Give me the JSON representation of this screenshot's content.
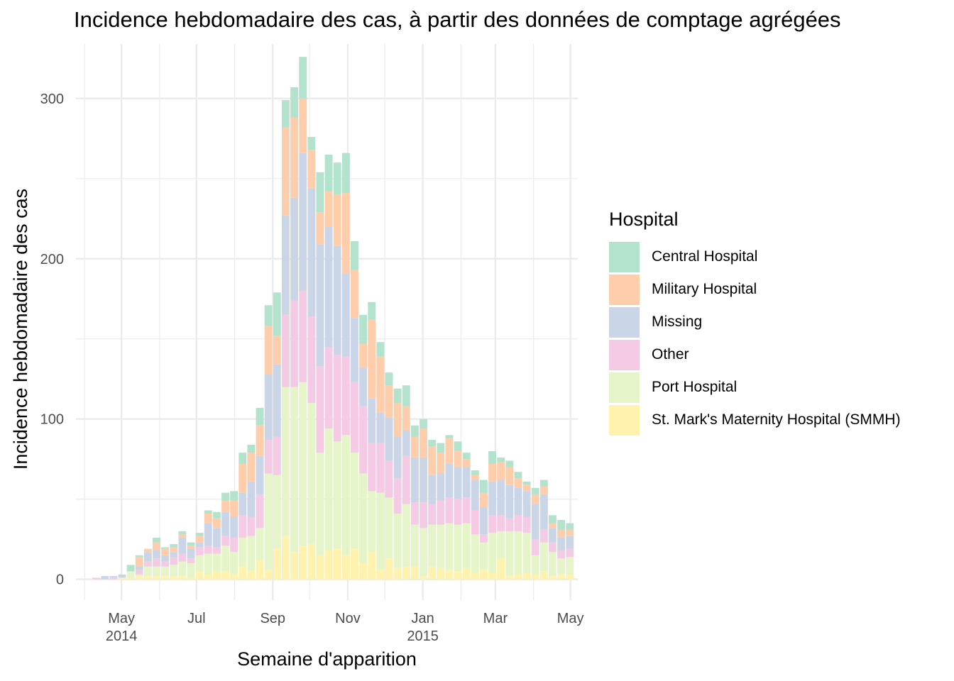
{
  "chart_data": {
    "type": "bar",
    "stacked": true,
    "title": "Incidence hebdomadaire des cas, à partir des données de comptage agrégées",
    "xlabel": "Semaine d'apparition",
    "ylabel": "Incidence hebdomadaire des cas",
    "ylim": [
      -13,
      334
    ],
    "y_ticks": [
      0,
      100,
      200,
      300
    ],
    "x_ticks": [
      {
        "date": "2014-05-01",
        "lines": [
          "May",
          "2014"
        ]
      },
      {
        "date": "2014-07-01",
        "lines": [
          "Jul"
        ]
      },
      {
        "date": "2014-09-01",
        "lines": [
          "Sep"
        ]
      },
      {
        "date": "2014-11-01",
        "lines": [
          "Nov"
        ]
      },
      {
        "date": "2015-01-01",
        "lines": [
          "Jan",
          "2015"
        ]
      },
      {
        "date": "2015-03-01",
        "lines": [
          "Mar"
        ]
      },
      {
        "date": "2015-05-01",
        "lines": [
          "May"
        ]
      }
    ],
    "x_minor_ticks": [
      "2014-04-01",
      "2014-06-01",
      "2014-08-01",
      "2014-10-01",
      "2014-12-01",
      "2015-02-01",
      "2015-04-01"
    ],
    "xlim": [
      "2014-03-25",
      "2015-05-07"
    ],
    "grid": true,
    "legend_position": "right",
    "legend_title": "Hospital",
    "weeks": [
      "2014-04-07",
      "2014-04-14",
      "2014-04-21",
      "2014-04-28",
      "2014-05-05",
      "2014-05-12",
      "2014-05-19",
      "2014-05-26",
      "2014-06-02",
      "2014-06-09",
      "2014-06-16",
      "2014-06-23",
      "2014-06-30",
      "2014-07-07",
      "2014-07-14",
      "2014-07-21",
      "2014-07-28",
      "2014-08-04",
      "2014-08-11",
      "2014-08-18",
      "2014-08-25",
      "2014-09-01",
      "2014-09-08",
      "2014-09-15",
      "2014-09-22",
      "2014-09-29",
      "2014-10-06",
      "2014-10-13",
      "2014-10-20",
      "2014-10-27",
      "2014-11-03",
      "2014-11-10",
      "2014-11-17",
      "2014-11-24",
      "2014-12-01",
      "2014-12-08",
      "2014-12-15",
      "2014-12-22",
      "2014-12-29",
      "2015-01-05",
      "2015-01-12",
      "2015-01-19",
      "2015-01-26",
      "2015-02-02",
      "2015-02-09",
      "2015-02-16",
      "2015-02-23",
      "2015-03-02",
      "2015-03-09",
      "2015-03-16",
      "2015-03-23",
      "2015-03-30",
      "2015-04-06",
      "2015-04-13",
      "2015-04-20",
      "2015-04-27"
    ],
    "series": [
      {
        "name": "St. Mark's Maternity Hospital (SMMH)",
        "color": "#fff2ae",
        "values": [
          0,
          0,
          0,
          1,
          1,
          2,
          2,
          2,
          2,
          2,
          2,
          1,
          5,
          3,
          5,
          5,
          3,
          8,
          5,
          12,
          6,
          19,
          27,
          17,
          21,
          22,
          15,
          18,
          19,
          15,
          19,
          10,
          17,
          6,
          13,
          7,
          8,
          8,
          2,
          8,
          7,
          6,
          5,
          7,
          4,
          6,
          4,
          13,
          2,
          3,
          4,
          3,
          5,
          2,
          3,
          3
        ]
      },
      {
        "name": "Port Hospital",
        "color": "#e6f5c9",
        "values": [
          0,
          0,
          0,
          0,
          4,
          1,
          6,
          6,
          6,
          7,
          9,
          9,
          10,
          13,
          11,
          16,
          14,
          18,
          22,
          20,
          60,
          46,
          93,
          103,
          102,
          88,
          64,
          76,
          67,
          75,
          60,
          56,
          38,
          48,
          38,
          34,
          39,
          26,
          30,
          26,
          27,
          29,
          29,
          28,
          24,
          17,
          25,
          17,
          28,
          27,
          25,
          12,
          18,
          15,
          10,
          11
        ]
      },
      {
        "name": "Other",
        "color": "#f4cae4",
        "values": [
          1,
          0,
          1,
          0,
          0,
          3,
          3,
          5,
          3,
          5,
          5,
          3,
          5,
          5,
          4,
          6,
          9,
          14,
          12,
          21,
          21,
          24,
          45,
          54,
          57,
          54,
          54,
          51,
          54,
          49,
          44,
          42,
          30,
          31,
          23,
          22,
          30,
          14,
          16,
          13,
          15,
          16,
          16,
          16,
          15,
          5,
          11,
          10,
          8,
          10,
          10,
          10,
          8,
          6,
          5,
          5
        ]
      },
      {
        "name": "Missing",
        "color": "#cbd5e8",
        "values": [
          0,
          2,
          1,
          2,
          0,
          2,
          6,
          5,
          4,
          3,
          10,
          6,
          3,
          14,
          12,
          15,
          13,
          14,
          22,
          24,
          41,
          45,
          62,
          64,
          86,
          80,
          76,
          75,
          68,
          52,
          40,
          24,
          28,
          19,
          27,
          26,
          16,
          28,
          28,
          18,
          17,
          21,
          20,
          19,
          19,
          17,
          21,
          22,
          21,
          17,
          16,
          22,
          22,
          9,
          8,
          8
        ]
      },
      {
        "name": "Military Hospital",
        "color": "#fdcdac",
        "values": [
          0,
          0,
          0,
          0,
          0,
          6,
          2,
          5,
          4,
          3,
          2,
          2,
          4,
          6,
          6,
          7,
          10,
          18,
          18,
          19,
          30,
          18,
          55,
          50,
          34,
          24,
          20,
          22,
          32,
          50,
          30,
          15,
          49,
          35,
          20,
          21,
          15,
          13,
          18,
          18,
          13,
          16,
          10,
          5,
          3,
          9,
          11,
          11,
          11,
          6,
          4,
          6,
          5,
          3,
          5,
          4
        ]
      },
      {
        "name": "Central Hospital",
        "color": "#b3e2cd",
        "values": [
          0,
          0,
          0,
          0,
          4,
          1,
          0,
          3,
          1,
          2,
          2,
          2,
          2,
          2,
          4,
          5,
          6,
          7,
          5,
          11,
          13,
          27,
          17,
          19,
          26,
          8,
          25,
          23,
          20,
          25,
          18,
          18,
          11,
          9,
          8,
          9,
          13,
          7,
          6,
          4,
          6,
          2,
          6,
          4,
          3,
          8,
          8,
          3,
          4,
          4,
          2,
          4,
          4,
          5,
          6,
          4
        ]
      }
    ]
  }
}
